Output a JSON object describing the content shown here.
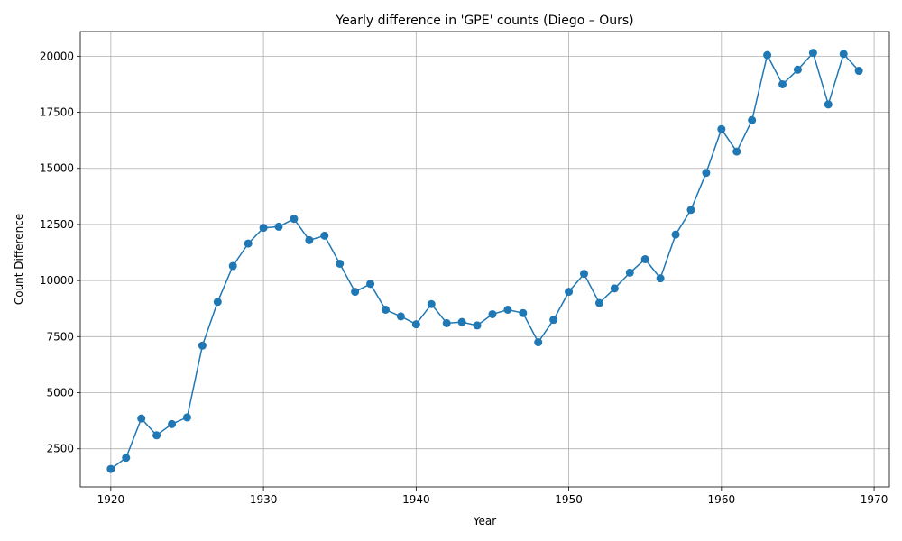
{
  "chart_data": {
    "type": "line",
    "title": "Yearly difference in 'GPE' counts (Diego – Ours)",
    "xlabel": "Year",
    "ylabel": "Count Difference",
    "xlim": [
      1918,
      1971
    ],
    "ylim": [
      800,
      21100
    ],
    "xticks": [
      1920,
      1930,
      1940,
      1950,
      1960,
      1970
    ],
    "yticks": [
      2500,
      5000,
      7500,
      10000,
      12500,
      15000,
      17500,
      20000
    ],
    "grid": true,
    "color": "#1f77b4",
    "marker": "circle",
    "series": [
      {
        "x": [
          1920,
          1921,
          1922,
          1923,
          1924,
          1925,
          1926,
          1927,
          1928,
          1929,
          1930,
          1931,
          1932,
          1933,
          1934,
          1935,
          1936,
          1937,
          1938,
          1939,
          1940,
          1941,
          1942,
          1943,
          1944,
          1945,
          1946,
          1947,
          1948,
          1949,
          1950,
          1951,
          1952,
          1953,
          1954,
          1955,
          1956,
          1957,
          1958,
          1959,
          1960,
          1961,
          1962,
          1963,
          1964,
          1965,
          1966,
          1967,
          1968,
          1969
        ],
        "y": [
          1600,
          2100,
          3850,
          3100,
          3600,
          3900,
          7100,
          9050,
          10650,
          11650,
          12350,
          12400,
          12750,
          11800,
          12000,
          10750,
          9500,
          9850,
          8700,
          8400,
          8050,
          8950,
          8100,
          8150,
          8000,
          8500,
          8700,
          8550,
          7250,
          8250,
          9500,
          10300,
          9000,
          9650,
          10350,
          10950,
          10100,
          12050,
          13150,
          14800,
          16750,
          15750,
          17150,
          20050,
          18750,
          19400,
          20150,
          17850,
          20100,
          19350
        ]
      }
    ]
  }
}
